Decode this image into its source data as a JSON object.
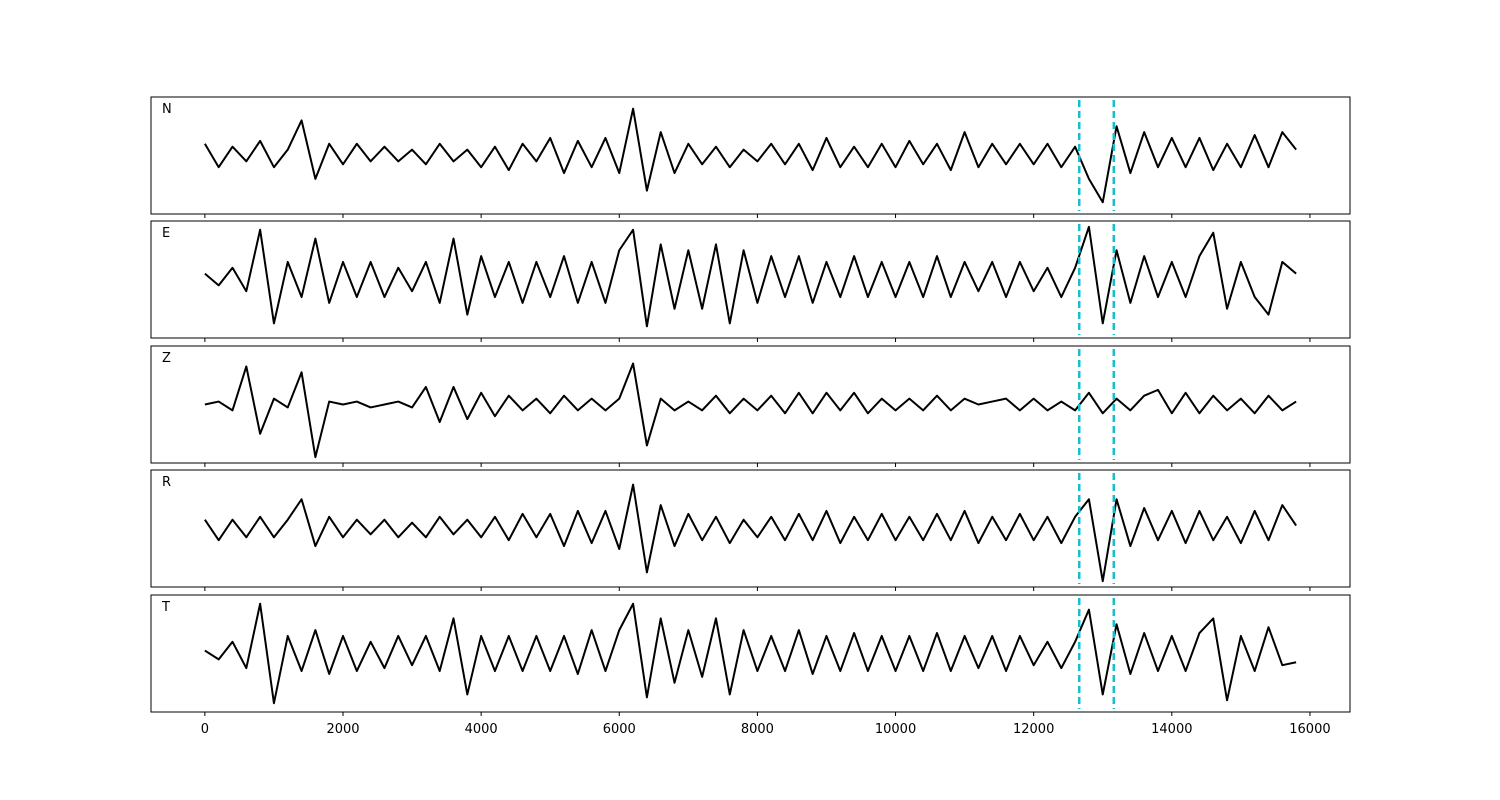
{
  "chart_data": {
    "type": "line",
    "x": [
      0,
      200,
      400,
      600,
      800,
      1000,
      1200,
      1400,
      1600,
      1800,
      2000,
      2200,
      2400,
      2600,
      2800,
      3000,
      3200,
      3400,
      3600,
      3800,
      4000,
      4200,
      4400,
      4600,
      4800,
      5000,
      5200,
      5400,
      5600,
      5800,
      6000,
      6200,
      6400,
      6600,
      6800,
      7000,
      7200,
      7400,
      7600,
      7800,
      8000,
      8200,
      8400,
      8600,
      8800,
      9000,
      9200,
      9400,
      9600,
      9800,
      10000,
      10200,
      10400,
      10600,
      10800,
      11000,
      11200,
      11400,
      11600,
      11800,
      12000,
      12200,
      12400,
      12600,
      12800,
      13000,
      13200,
      13400,
      13600,
      13800,
      14000,
      14200,
      14400,
      14600,
      14800,
      15000,
      15200,
      15400,
      15600,
      15800
    ],
    "series": [
      {
        "name": "N",
        "color": "#000000",
        "values": [
          0.2,
          -0.2,
          0.15,
          -0.1,
          0.25,
          -0.2,
          0.1,
          0.6,
          -0.4,
          0.2,
          -0.15,
          0.2,
          -0.1,
          0.15,
          -0.1,
          0.1,
          -0.15,
          0.2,
          -0.1,
          0.1,
          -0.2,
          0.15,
          -0.25,
          0.2,
          -0.1,
          0.3,
          -0.3,
          0.25,
          -0.2,
          0.3,
          -0.3,
          0.8,
          -0.6,
          0.4,
          -0.3,
          0.2,
          -0.15,
          0.15,
          -0.2,
          0.1,
          -0.1,
          0.2,
          -0.15,
          0.2,
          -0.25,
          0.3,
          -0.2,
          0.15,
          -0.2,
          0.2,
          -0.2,
          0.25,
          -0.15,
          0.2,
          -0.25,
          0.4,
          -0.2,
          0.2,
          -0.15,
          0.2,
          -0.15,
          0.2,
          -0.2,
          0.15,
          -0.4,
          -0.8,
          0.5,
          -0.3,
          0.4,
          -0.2,
          0.3,
          -0.2,
          0.3,
          -0.25,
          0.2,
          -0.2,
          0.35,
          -0.2,
          0.4,
          0.1
        ]
      },
      {
        "name": "E",
        "color": "#000000",
        "values": [
          0.1,
          -0.1,
          0.2,
          -0.2,
          0.85,
          -0.75,
          0.3,
          -0.3,
          0.7,
          -0.4,
          0.3,
          -0.3,
          0.3,
          -0.3,
          0.2,
          -0.2,
          0.3,
          -0.4,
          0.7,
          -0.6,
          0.4,
          -0.3,
          0.3,
          -0.4,
          0.3,
          -0.3,
          0.4,
          -0.4,
          0.3,
          -0.4,
          0.5,
          0.85,
          -0.8,
          0.6,
          -0.5,
          0.5,
          -0.5,
          0.6,
          -0.75,
          0.5,
          -0.4,
          0.4,
          -0.3,
          0.4,
          -0.4,
          0.3,
          -0.3,
          0.4,
          -0.3,
          0.3,
          -0.3,
          0.3,
          -0.3,
          0.4,
          -0.3,
          0.3,
          -0.2,
          0.3,
          -0.3,
          0.3,
          -0.2,
          0.2,
          -0.3,
          0.2,
          0.9,
          -0.75,
          0.5,
          -0.4,
          0.4,
          -0.3,
          0.3,
          -0.3,
          0.4,
          0.8,
          -0.5,
          0.3,
          -0.3,
          -0.6,
          0.3,
          0.1
        ]
      },
      {
        "name": "Z",
        "color": "#000000",
        "values": [
          0,
          0.05,
          -0.1,
          0.65,
          -0.5,
          0.1,
          -0.05,
          0.55,
          -0.9,
          0.05,
          0,
          0.05,
          -0.05,
          0,
          0.05,
          -0.05,
          0.3,
          -0.3,
          0.3,
          -0.25,
          0.2,
          -0.2,
          0.15,
          -0.1,
          0.1,
          -0.15,
          0.15,
          -0.1,
          0.1,
          -0.1,
          0.1,
          0.7,
          -0.7,
          0.1,
          -0.1,
          0.05,
          -0.1,
          0.15,
          -0.15,
          0.1,
          -0.1,
          0.15,
          -0.15,
          0.2,
          -0.15,
          0.2,
          -0.1,
          0.2,
          -0.15,
          0.1,
          -0.1,
          0.1,
          -0.1,
          0.15,
          -0.1,
          0.1,
          0,
          0.05,
          0.1,
          -0.1,
          0.1,
          -0.1,
          0.05,
          -0.1,
          0.2,
          -0.15,
          0.1,
          -0.1,
          0.15,
          0.25,
          -0.15,
          0.2,
          -0.15,
          0.15,
          -0.1,
          0.1,
          -0.15,
          0.15,
          -0.1,
          0.05
        ]
      },
      {
        "name": "R",
        "color": "#000000",
        "values": [
          0.15,
          -0.2,
          0.15,
          -0.15,
          0.2,
          -0.15,
          0.15,
          0.5,
          -0.3,
          0.2,
          -0.15,
          0.15,
          -0.1,
          0.15,
          -0.15,
          0.1,
          -0.15,
          0.2,
          -0.1,
          0.15,
          -0.15,
          0.2,
          -0.2,
          0.25,
          -0.15,
          0.25,
          -0.3,
          0.3,
          -0.25,
          0.3,
          -0.35,
          0.75,
          -0.75,
          0.4,
          -0.3,
          0.25,
          -0.2,
          0.2,
          -0.25,
          0.15,
          -0.15,
          0.2,
          -0.2,
          0.25,
          -0.2,
          0.3,
          -0.25,
          0.2,
          -0.2,
          0.25,
          -0.2,
          0.2,
          -0.2,
          0.25,
          -0.2,
          0.3,
          -0.25,
          0.2,
          -0.2,
          0.25,
          -0.2,
          0.2,
          -0.25,
          0.2,
          0.5,
          -0.9,
          0.5,
          -0.3,
          0.35,
          -0.2,
          0.3,
          -0.25,
          0.3,
          -0.2,
          0.2,
          -0.25,
          0.3,
          -0.2,
          0.4,
          0.05
        ]
      },
      {
        "name": "T",
        "color": "#000000",
        "values": [
          0.05,
          -0.1,
          0.2,
          -0.25,
          0.85,
          -0.85,
          0.3,
          -0.3,
          0.4,
          -0.35,
          0.3,
          -0.3,
          0.2,
          -0.25,
          0.3,
          -0.2,
          0.3,
          -0.3,
          0.6,
          -0.7,
          0.3,
          -0.3,
          0.3,
          -0.3,
          0.3,
          -0.3,
          0.3,
          -0.35,
          0.4,
          -0.3,
          0.4,
          0.85,
          -0.75,
          0.6,
          -0.5,
          0.4,
          -0.4,
          0.6,
          -0.7,
          0.4,
          -0.3,
          0.3,
          -0.3,
          0.4,
          -0.35,
          0.3,
          -0.3,
          0.35,
          -0.3,
          0.3,
          -0.3,
          0.3,
          -0.3,
          0.35,
          -0.3,
          0.3,
          -0.25,
          0.3,
          -0.3,
          0.3,
          -0.2,
          0.2,
          -0.25,
          0.2,
          0.75,
          -0.7,
          0.5,
          -0.35,
          0.35,
          -0.3,
          0.3,
          -0.3,
          0.35,
          0.6,
          -0.8,
          0.3,
          -0.3,
          0.45,
          -0.2,
          -0.15
        ]
      }
    ],
    "xlim": [
      -780,
      16580
    ],
    "xticks": [
      0,
      2000,
      4000,
      6000,
      8000,
      10000,
      12000,
      14000,
      16000
    ],
    "ylim": [
      -1,
      1
    ],
    "vlines": [
      12660,
      13160
    ],
    "vline_color": "#17becf"
  }
}
